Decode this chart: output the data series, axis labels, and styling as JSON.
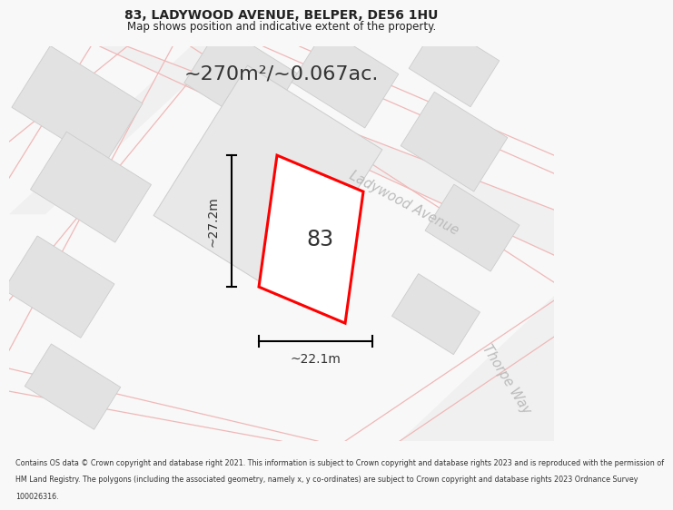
{
  "title_line1": "83, LADYWOOD AVENUE, BELPER, DE56 1HU",
  "title_line2": "Map shows position and indicative extent of the property.",
  "area_label": "~270m²/~0.067ac.",
  "width_label": "~22.1m",
  "height_label": "~27.2m",
  "number_label": "83",
  "street_label1": "Ladywood Avenue",
  "street_label2": "Thorpe Way",
  "footer_lines": [
    "Contains OS data © Crown copyright and database right 2021. This information is subject to Crown copyright and database rights 2023 and is reproduced with the permission of",
    "HM Land Registry. The polygons (including the associated geometry, namely x, y co-ordinates) are subject to Crown copyright and database rights 2023 Ordnance Survey",
    "100026316."
  ],
  "bg_color": "#f8f8f8",
  "plot_edge": "#ff0000",
  "building_fill": "#e2e2e2",
  "building_edge": "#cccccc",
  "road_fill": "#f5f5f5",
  "road_line_color": "#f0b8b8",
  "dim_line_color": "#000000",
  "text_dark": "#222222",
  "text_gray": "#999999",
  "area_text_color": "#333333"
}
